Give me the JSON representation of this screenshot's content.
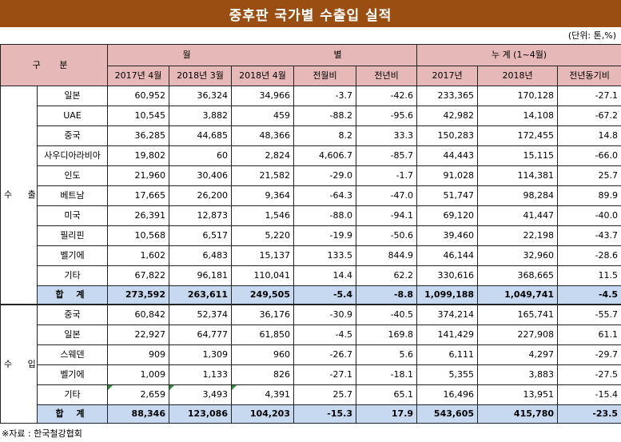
{
  "title": "중후판 국가별 수출입 실적",
  "unit": "(단위: 톤,%)",
  "header": {
    "gubun": "구 분",
    "wolbyeol_left": "월",
    "wolbyeol_right": "별",
    "nugye": "누 계 (1~4월)",
    "columns": [
      "2017년 4월",
      "2018년 3월",
      "2018년 4월",
      "전월비",
      "전년비",
      "2017년",
      "2018년",
      "전년동기비"
    ]
  },
  "export": {
    "label": "수 출",
    "rows": [
      {
        "country": "일본",
        "values": [
          "60,952",
          "36,324",
          "34,966",
          "-3.7",
          "-42.6",
          "233,365",
          "170,128",
          "-27.1"
        ]
      },
      {
        "country": "UAE",
        "values": [
          "10,545",
          "3,882",
          "459",
          "-88.2",
          "-95.6",
          "42,982",
          "14,108",
          "-67.2"
        ]
      },
      {
        "country": "중국",
        "values": [
          "36,285",
          "44,685",
          "48,366",
          "8.2",
          "33.3",
          "150,283",
          "172,455",
          "14.8"
        ]
      },
      {
        "country": "사우디아라비아",
        "values": [
          "19,802",
          "60",
          "2,824",
          "4,606.7",
          "-85.7",
          "44,443",
          "15,115",
          "-66.0"
        ]
      },
      {
        "country": "인도",
        "values": [
          "21,960",
          "30,406",
          "21,582",
          "-29.0",
          "-1.7",
          "91,028",
          "114,381",
          "25.7"
        ]
      },
      {
        "country": "베트남",
        "values": [
          "17,665",
          "26,200",
          "9,364",
          "-64.3",
          "-47.0",
          "51,747",
          "98,284",
          "89.9"
        ]
      },
      {
        "country": "미국",
        "values": [
          "26,391",
          "12,873",
          "1,546",
          "-88.0",
          "-94.1",
          "69,120",
          "41,447",
          "-40.0"
        ]
      },
      {
        "country": "필리핀",
        "values": [
          "10,568",
          "6,517",
          "5,220",
          "-19.9",
          "-50.6",
          "39,460",
          "22,198",
          "-43.7"
        ]
      },
      {
        "country": "벨기에",
        "values": [
          "1,602",
          "6,483",
          "15,137",
          "133.5",
          "844.9",
          "46,144",
          "32,960",
          "-28.6"
        ]
      },
      {
        "country": "기타",
        "values": [
          "67,822",
          "96,181",
          "110,041",
          "14.4",
          "62.2",
          "330,616",
          "368,665",
          "11.5"
        ]
      }
    ],
    "total": {
      "label": "합 계",
      "values": [
        "273,592",
        "263,611",
        "249,505",
        "-5.4",
        "-8.8",
        "1,099,188",
        "1,049,741",
        "-4.5"
      ]
    }
  },
  "import": {
    "label": "수 입",
    "rows": [
      {
        "country": "중국",
        "values": [
          "60,842",
          "52,374",
          "36,176",
          "-30.9",
          "-40.5",
          "374,214",
          "165,741",
          "-55.7"
        ]
      },
      {
        "country": "일본",
        "values": [
          "22,927",
          "64,777",
          "61,850",
          "-4.5",
          "169.8",
          "141,429",
          "227,908",
          "61.1"
        ]
      },
      {
        "country": "스웨덴",
        "values": [
          "909",
          "1,309",
          "960",
          "-26.7",
          "5.6",
          "6,111",
          "4,297",
          "-29.7"
        ]
      },
      {
        "country": "벨기에",
        "values": [
          "1,009",
          "1,133",
          "826",
          "-27.1",
          "-18.1",
          "5,355",
          "3,883",
          "-27.5"
        ]
      },
      {
        "country": "기타",
        "values": [
          "2,659",
          "3,493",
          "4,391",
          "25.7",
          "65.1",
          "16,496",
          "13,951",
          "-15.4"
        ]
      }
    ],
    "total": {
      "label": "합 계",
      "values": [
        "88,346",
        "123,086",
        "104,203",
        "-15.3",
        "17.9",
        "543,605",
        "415,780",
        "-23.5"
      ]
    }
  },
  "source": "※자료 : 한국철강협회"
}
